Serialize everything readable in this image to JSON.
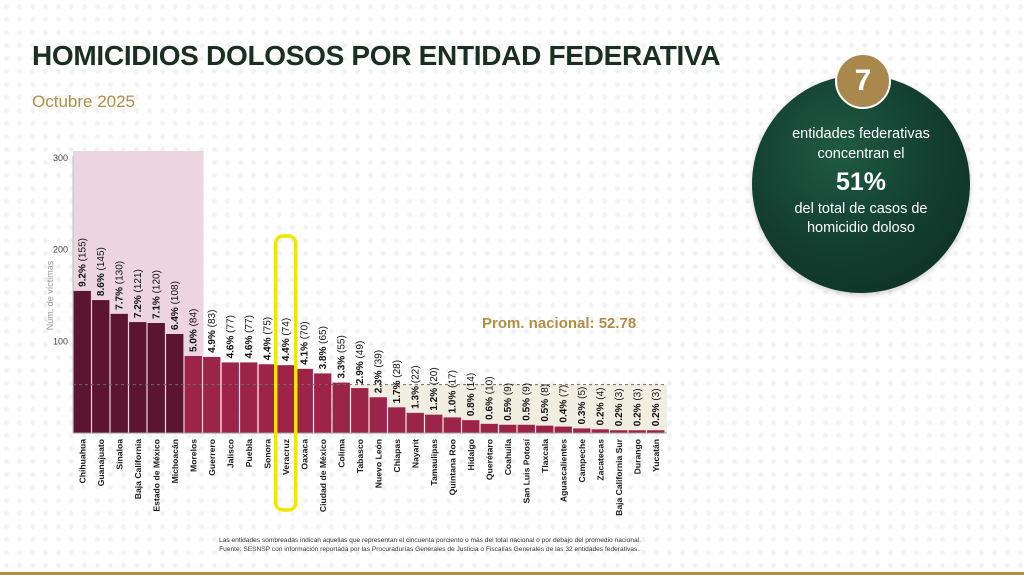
{
  "title": "HOMICIDIOS DOLOSOS POR ENTIDAD FEDERATIVA",
  "subtitle": "Octubre 2025",
  "callout": {
    "number": "7",
    "line1": "entidades federativas concentran el",
    "percent": "51%",
    "line2": "del total de casos de homicidio doloso"
  },
  "footnotes": [
    "Las entidades sombreadas indican aquellas que representan el cincuenta porciento o más del total nacional o por debajo del promedio nacional.",
    "Fuente: SESNSP con información reportada por las Procuradurías Generales de Justicia o Fiscalías Generales de las 32 entidades federativas.."
  ],
  "colors": {
    "top_bar": "#5c1530",
    "rest_bar": "#9d2449",
    "highlight_region": "#ecd5e1",
    "below_avg_region": "#f1ede0",
    "highlight_box": "#f2e600",
    "avg_label": "#b08d4a"
  },
  "chart_data": {
    "type": "bar",
    "title": "HOMICIDIOS DOLOSOS POR ENTIDAD FEDERATIVA",
    "ylabel": "Núm. de víctimas",
    "xlabel": "",
    "ylim": [
      0,
      300
    ],
    "yticks": [
      100,
      200,
      300
    ],
    "grid": false,
    "average": {
      "value": 52.78,
      "label": "Prom. nacional: 52.78"
    },
    "highlighted_count": 7,
    "highlighted_category": "Veracruz",
    "categories": [
      "Chihuahua",
      "Guanajuato",
      "Sinaloa",
      "Baja California",
      "Estado de México",
      "Michoacán",
      "Morelos",
      "Guerrero",
      "Jalisco",
      "Puebla",
      "Sonora",
      "Veracruz",
      "Oaxaca",
      "Ciudad de México",
      "Colima",
      "Tabasco",
      "Nuevo León",
      "Chiapas",
      "Nayarit",
      "Tamaulipas",
      "Quintana Roo",
      "Hidalgo",
      "Querétaro",
      "Coahuila",
      "San Luis Potosí",
      "Tlaxcala",
      "Aguascalientes",
      "Campeche",
      "Zacatecas",
      "Baja California Sur",
      "Durango",
      "Yucatán"
    ],
    "values": [
      155,
      145,
      130,
      121,
      120,
      108,
      84,
      83,
      77,
      77,
      75,
      74,
      70,
      65,
      55,
      49,
      39,
      28,
      22,
      20,
      17,
      14,
      10,
      9,
      9,
      8,
      7,
      5,
      4,
      3,
      3,
      3
    ],
    "percent_labels": [
      "9.2%",
      "8.6%",
      "7.7%",
      "7.2%",
      "7.1%",
      "6.4%",
      "5.0%",
      "4.9%",
      "4.6%",
      "4.6%",
      "4.4%",
      "4.4%",
      "4.1%",
      "3.8%",
      "3.3%",
      "2.9%",
      "2.3%",
      "1.7%",
      "1.3%",
      "1.2%",
      "1.0%",
      "0.8%",
      "0.6%",
      "0.5%",
      "0.5%",
      "0.5%",
      "0.4%",
      "0.3%",
      "0.2%",
      "0.2%",
      "0.2%",
      "0.2%"
    ],
    "count_labels": [
      "(155)",
      "(145)",
      "(130)",
      "(121)",
      "(120)",
      "(108)",
      "(84)",
      "(83)",
      "(77)",
      "(77)",
      "(75)",
      "(74)",
      "(70)",
      "(65)",
      "(55)",
      "(49)",
      "(39)",
      "(28)",
      "(22)",
      "(20)",
      "(17)",
      "(14)",
      "(10)",
      "(9)",
      "(9)",
      "(8)",
      "(7)",
      "(5)",
      "(4)",
      "(3)",
      "(3)",
      "(3)"
    ]
  }
}
